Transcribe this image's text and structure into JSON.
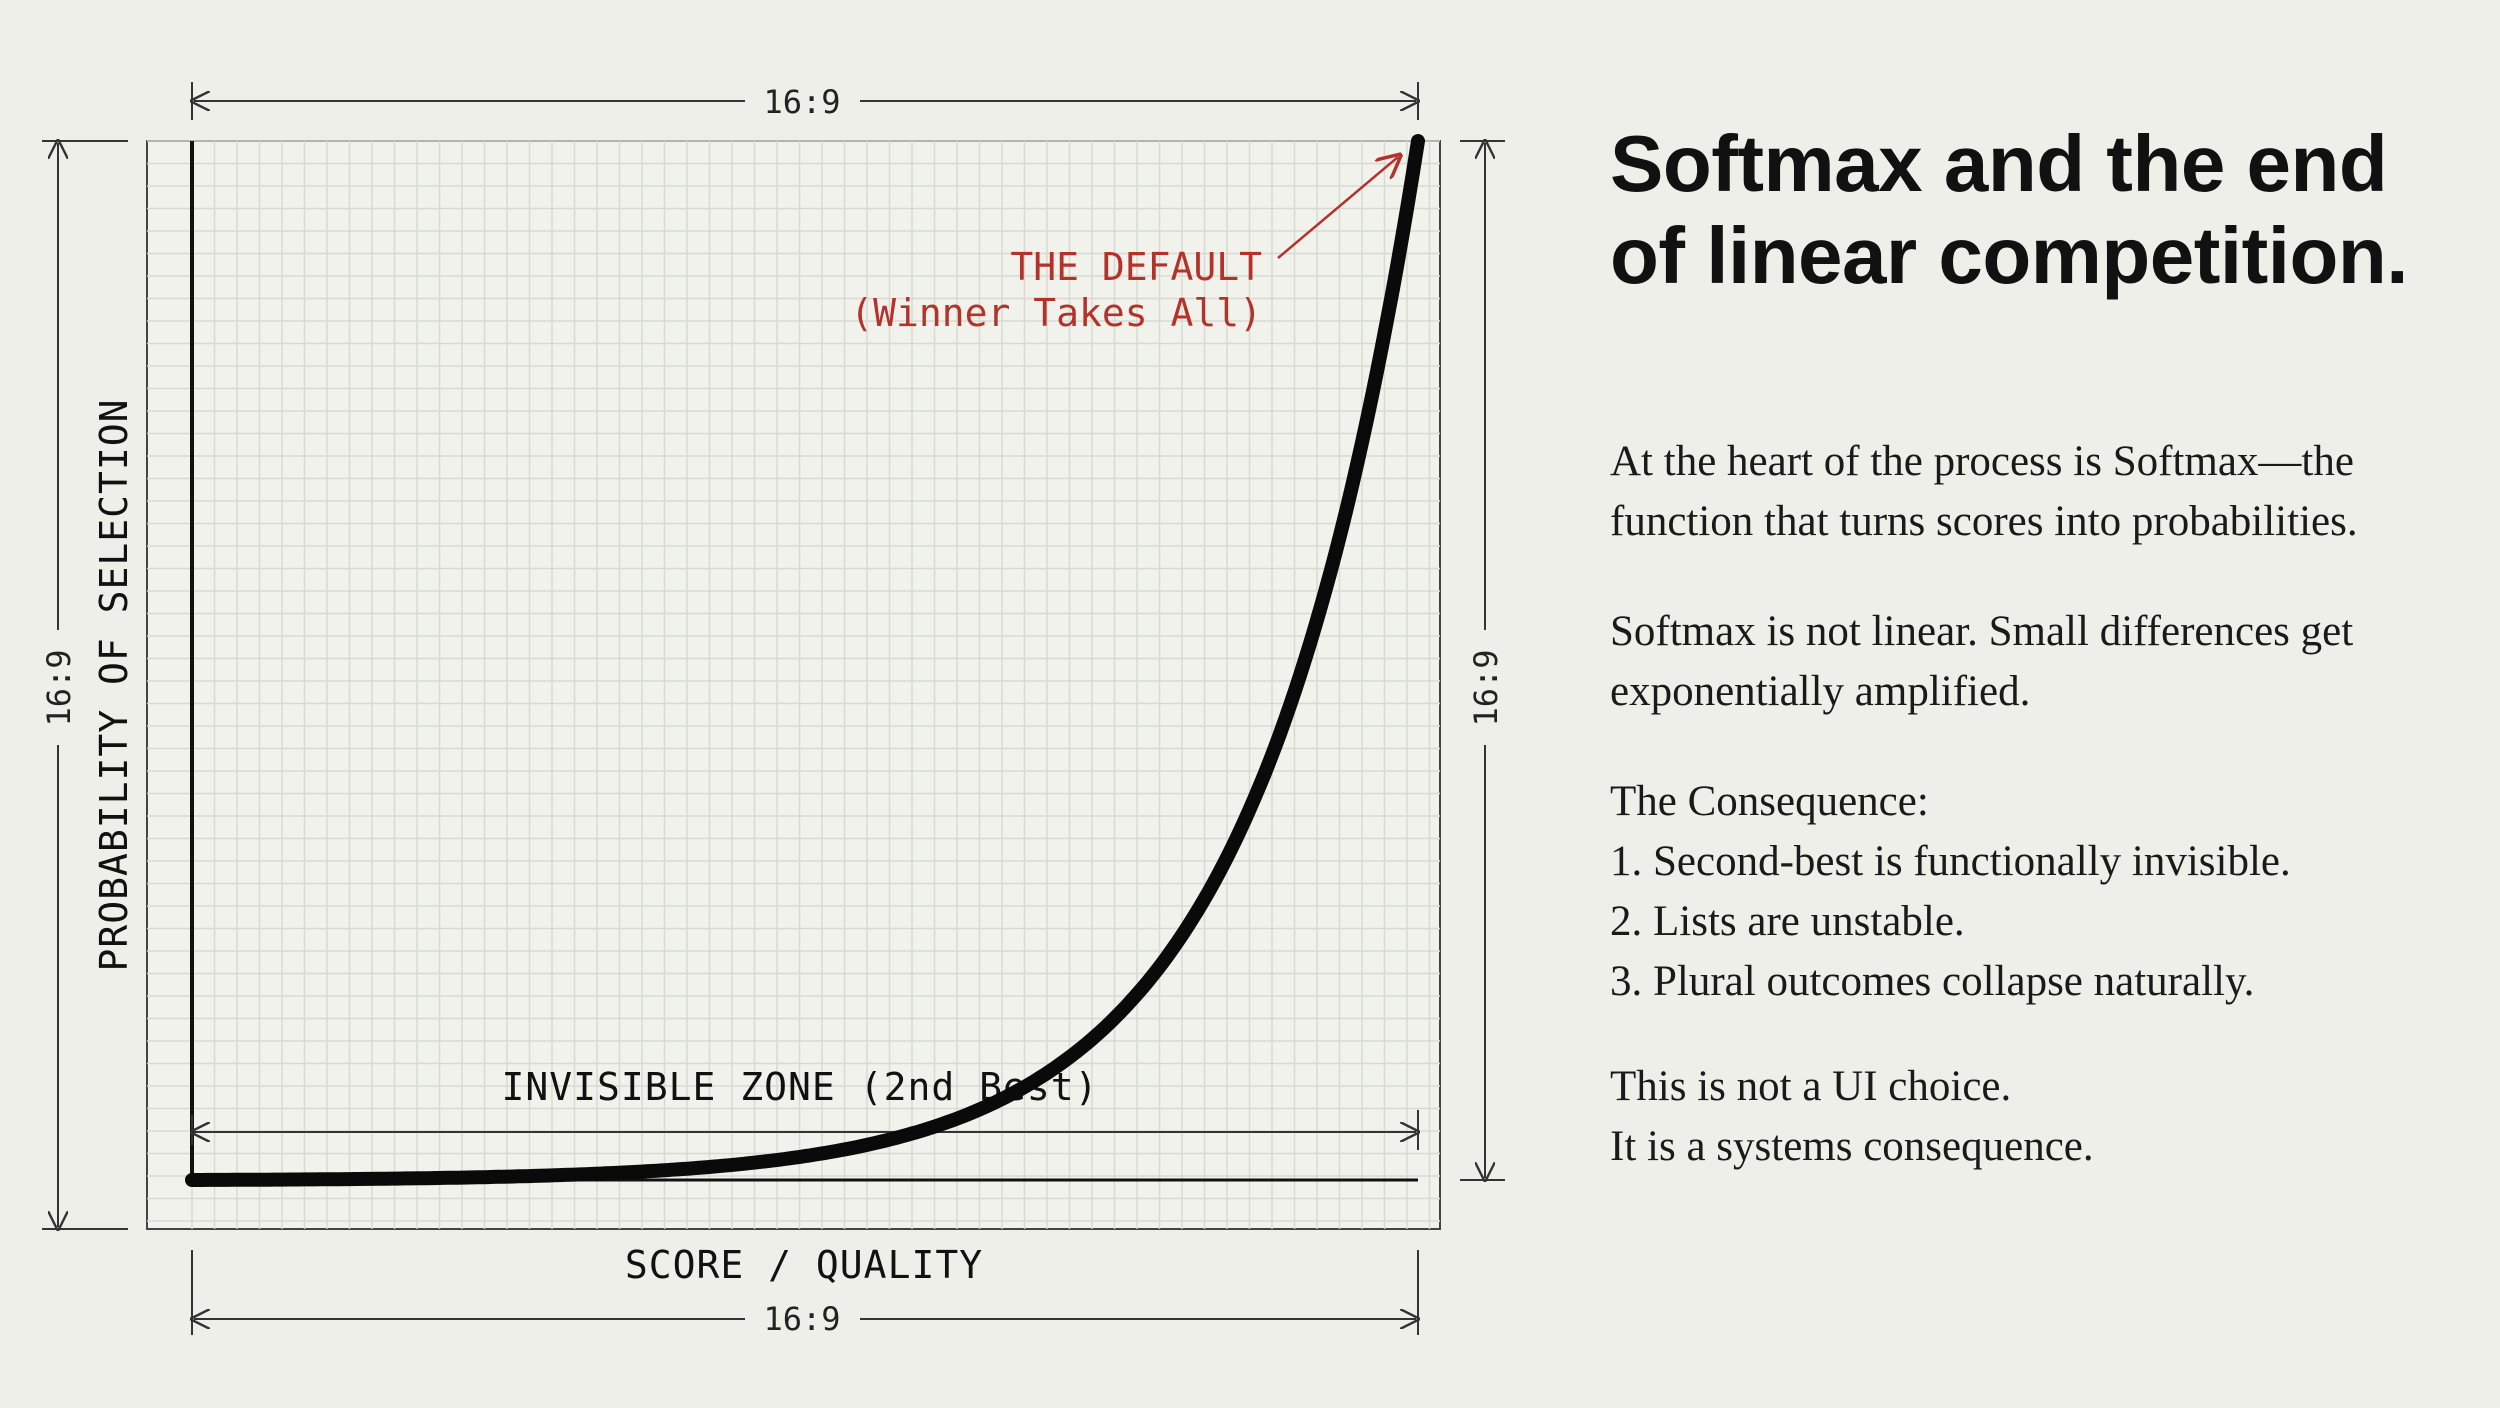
{
  "diagram": {
    "dimension_label": "16:9",
    "y_axis_label": "PROBABILITY OF SELECTION",
    "x_axis_label": "SCORE / QUALITY",
    "zone_label": "INVISIBLE ZONE (2nd Best)",
    "annotation_title": "THE DEFAULT",
    "annotation_subtitle": "(Winner Takes All)",
    "accent_color": "#b5322a",
    "curve_color": "#0a0a0a",
    "grid_color": "#d8d9d3"
  },
  "headline": "Softmax and the end of linear competition.",
  "para1": "At the heart of the process is Softmax—the function that turns scores into probabilities.",
  "para2": "Softmax is not linear. Small differences get exponentially amplified.",
  "consequence": {
    "heading": "The Consequence:",
    "items": [
      "1. Second-best is functionally invisible.",
      "2. Lists are unstable.",
      "3. Plural outcomes collapse naturally."
    ]
  },
  "closing": {
    "line1": "This is not a UI choice.",
    "line2": "It is a systems consequence."
  }
}
